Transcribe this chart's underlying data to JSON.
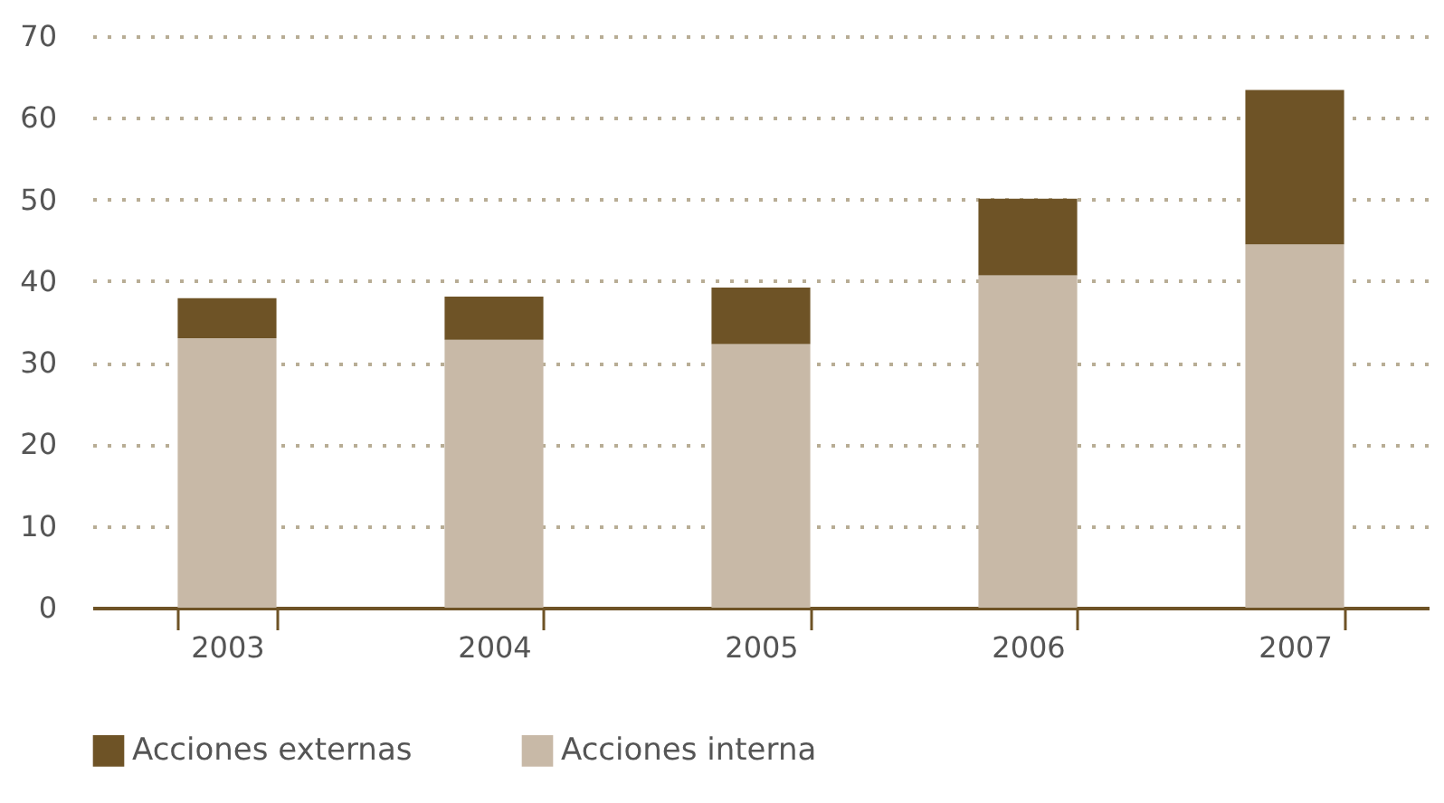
{
  "chart_data": {
    "type": "bar",
    "stacked": true,
    "categories": [
      "2003",
      "2004",
      "2005",
      "2006",
      "2007"
    ],
    "series": [
      {
        "name": "Acciones interna",
        "color": "#c8b9a7",
        "values": [
          33.0,
          32.8,
          32.3,
          40.7,
          44.5
        ]
      },
      {
        "name": "Acciones externas",
        "color": "#6e5326",
        "values": [
          4.9,
          5.3,
          6.9,
          9.4,
          18.9
        ]
      }
    ],
    "ylim": [
      0,
      70
    ],
    "yticks": [
      0,
      10,
      20,
      30,
      40,
      50,
      60,
      70
    ],
    "grid": "y",
    "legend": "bottom"
  }
}
